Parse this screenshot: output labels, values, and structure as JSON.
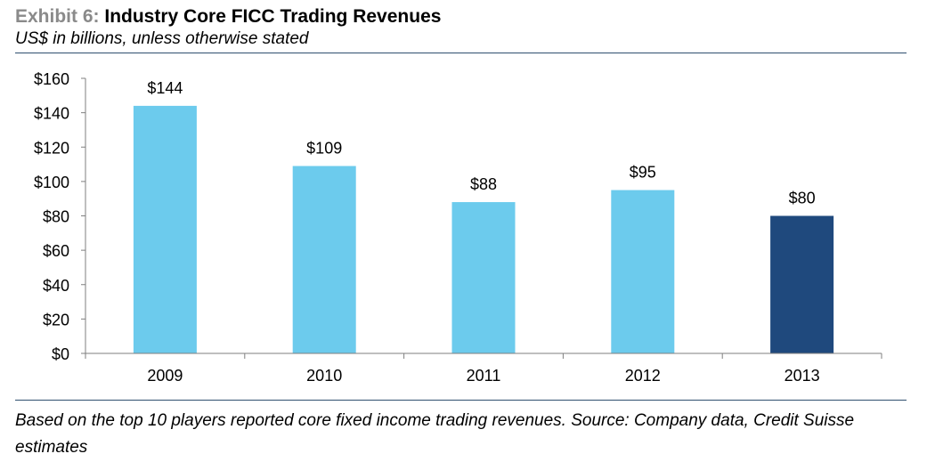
{
  "header": {
    "exhibit": "Exhibit 6:",
    "title": "Industry Core FICC Trading Revenues",
    "subtitle": "US$ in billions, unless otherwise stated"
  },
  "footnote": "Based on the top 10 players reported core fixed income trading revenues. Source: Company data, Credit Suisse estimates",
  "chart_data": {
    "type": "bar",
    "title": "",
    "xlabel": "",
    "ylabel": "",
    "categories": [
      "2009",
      "2010",
      "2011",
      "2012",
      "2013"
    ],
    "values": [
      144,
      109,
      88,
      95,
      80
    ],
    "data_labels": [
      "$144",
      "$109",
      "$88",
      "$95",
      "$80"
    ],
    "ylim": [
      0,
      160
    ],
    "yticks": [
      0,
      20,
      40,
      60,
      80,
      100,
      120,
      140,
      160
    ],
    "ytick_labels": [
      "$0",
      "$20",
      "$40",
      "$60",
      "$80",
      "$100",
      "$120",
      "$140",
      "$160"
    ],
    "grid": false,
    "legend": "none",
    "colors": [
      "#6ccbed",
      "#6ccbed",
      "#6ccbed",
      "#6ccbed",
      "#1f497d"
    ]
  }
}
